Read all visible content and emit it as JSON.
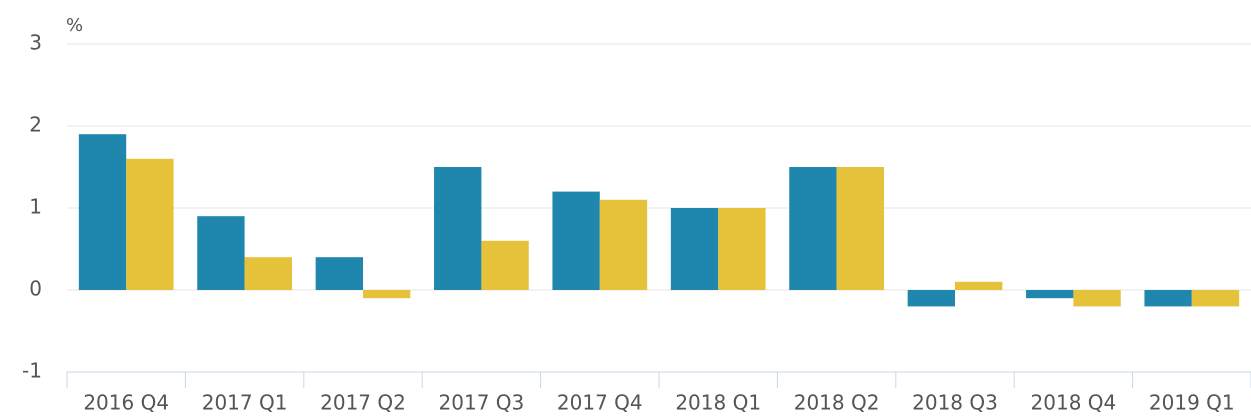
{
  "chart_data": {
    "type": "bar",
    "y_label": "%",
    "categories": [
      "2016 Q4",
      "2017 Q1",
      "2017 Q2",
      "2017 Q3",
      "2017 Q4",
      "2018 Q1",
      "2018 Q2",
      "2018 Q3",
      "2018 Q4",
      "2019 Q1"
    ],
    "series": [
      {
        "color": "#1f87ad",
        "values": [
          1.9,
          0.9,
          0.4,
          1.5,
          1.2,
          1.0,
          1.5,
          -0.2,
          -0.1,
          -0.2
        ]
      },
      {
        "color": "#e6c23a",
        "values": [
          1.6,
          0.4,
          -0.1,
          0.6,
          1.1,
          1.0,
          1.5,
          0.1,
          -0.2,
          -0.2
        ]
      }
    ],
    "ylim": [
      -1,
      3
    ],
    "yticks": [
      -1,
      0,
      1,
      2,
      3
    ],
    "grid": true
  }
}
